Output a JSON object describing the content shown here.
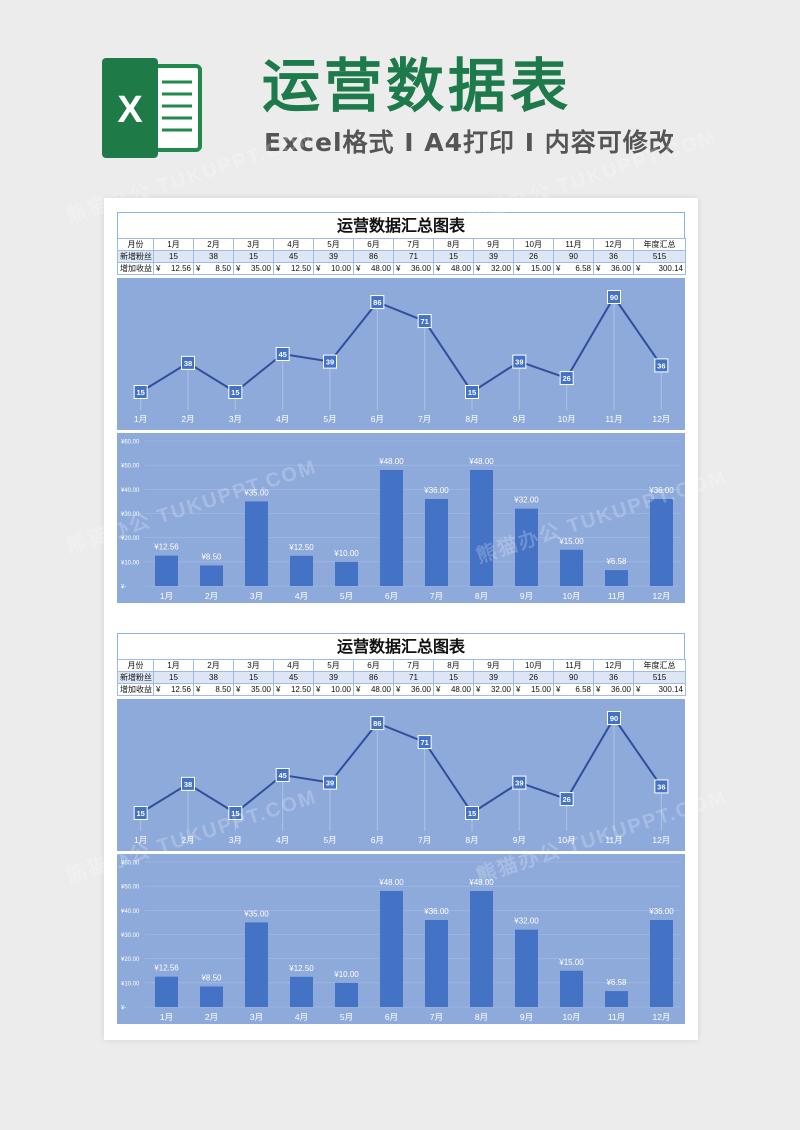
{
  "header": {
    "title": "运营数据表",
    "subtitle": "Excel格式 I A4打印 I 内容可修改",
    "icon_letter": "X"
  },
  "sheet": {
    "title": "运营数据汇总图表",
    "row_labels": [
      "月份",
      "新增粉丝",
      "增加收益"
    ],
    "total_label": "年度汇总",
    "months": [
      "1月",
      "2月",
      "3月",
      "4月",
      "5月",
      "6月",
      "7月",
      "8月",
      "9月",
      "10月",
      "11月",
      "12月"
    ],
    "fans": [
      15,
      38,
      15,
      45,
      39,
      86,
      71,
      15,
      39,
      26,
      90,
      36
    ],
    "fans_total": "515",
    "currency": "¥",
    "revenue_text": [
      "12.56",
      "8.50",
      "35.00",
      "12.50",
      "10.00",
      "48.00",
      "36.00",
      "48.00",
      "32.00",
      "15.00",
      "6.58",
      "36.00"
    ],
    "revenue_total": "300.14"
  },
  "watermark": "熊猫办公 TUKUPPT.COM",
  "colors": {
    "brand_green": "#1d7a4a",
    "chart_bg": "#8eaadb",
    "bar": "#4472c4",
    "line": "#2f4f9e"
  },
  "chart_data": [
    {
      "type": "line",
      "categories": [
        "1月",
        "2月",
        "3月",
        "4月",
        "5月",
        "6月",
        "7月",
        "8月",
        "9月",
        "10月",
        "11月",
        "12月"
      ],
      "series": [
        {
          "name": "新增粉丝",
          "values": [
            15,
            38,
            15,
            45,
            39,
            86,
            71,
            15,
            39,
            26,
            90,
            36
          ]
        }
      ],
      "title": "",
      "xlabel": "",
      "ylabel": "",
      "grid": false
    },
    {
      "type": "bar",
      "categories": [
        "1月",
        "2月",
        "3月",
        "4月",
        "5月",
        "6月",
        "7月",
        "8月",
        "9月",
        "10月",
        "11月",
        "12月"
      ],
      "series": [
        {
          "name": "增加收益",
          "values": [
            12.56,
            8.5,
            35.0,
            12.5,
            10.0,
            48.0,
            36.0,
            48.0,
            32.0,
            15.0,
            6.58,
            36.0
          ]
        }
      ],
      "data_labels": [
        "¥12.56",
        "¥8.50",
        "¥35.00",
        "¥12.50",
        "¥10.00",
        "¥48.00",
        "¥36.00",
        "¥48.00",
        "¥32.00",
        "¥15.00",
        "¥6.58",
        "¥36.00"
      ],
      "y_ticks": [
        "¥60.00",
        "¥50.00",
        "¥40.00",
        "¥30.00",
        "¥20.00",
        "¥10.00",
        "¥-"
      ],
      "ylim": [
        0,
        60
      ],
      "title": "",
      "xlabel": "",
      "ylabel": "",
      "grid": false
    }
  ]
}
